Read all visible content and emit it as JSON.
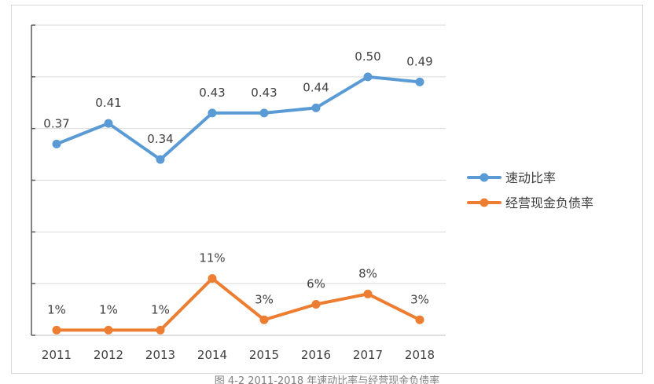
{
  "chart_data": {
    "type": "line",
    "categories": [
      "2011",
      "2012",
      "2013",
      "2014",
      "2015",
      "2016",
      "2017",
      "2018"
    ],
    "series": [
      {
        "name": "速动比率",
        "values": [
          0.37,
          0.41,
          0.34,
          0.43,
          0.43,
          0.44,
          0.5,
          0.49
        ],
        "labels": [
          "0.37",
          "0.41",
          "0.34",
          "0.43",
          "0.43",
          "0.44",
          "0.50",
          "0.49"
        ],
        "color": "#5b9bd5"
      },
      {
        "name": "经营现金负债率",
        "values": [
          0.01,
          0.01,
          0.01,
          0.11,
          0.03,
          0.06,
          0.08,
          0.03
        ],
        "labels": [
          "1%",
          "1%",
          "1%",
          "11%",
          "3%",
          "6%",
          "8%",
          "3%"
        ],
        "color": "#ed7d31"
      }
    ],
    "ylim": [
      0,
      0.6
    ],
    "gridlines": true,
    "legend": "right"
  },
  "caption": "图 4-2 2011-2018 年速动比率与经营现金负债率"
}
